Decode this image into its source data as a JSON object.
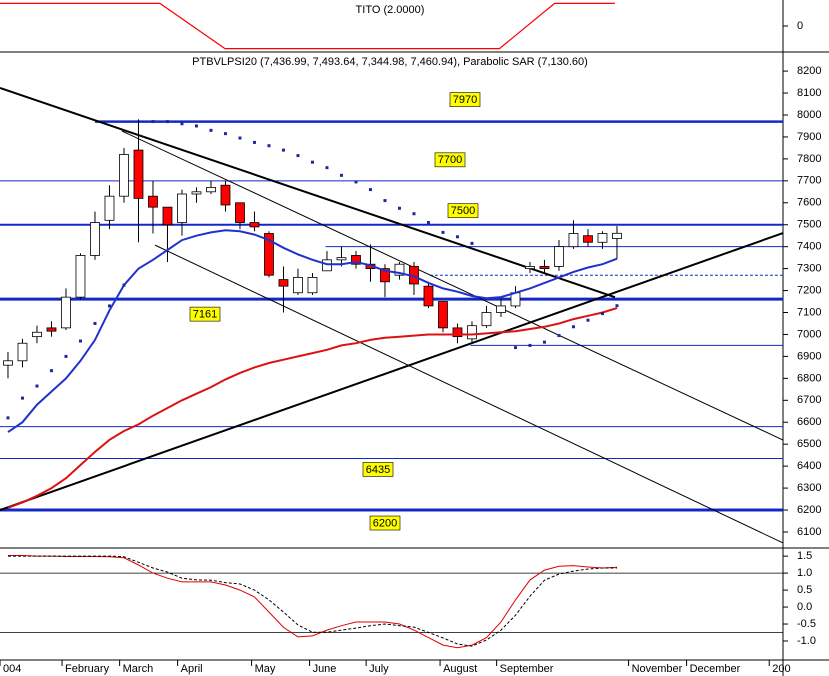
{
  "chart_data": [
    {
      "type": "line",
      "title": "TITO (2.0000)",
      "x": [
        -0.55,
        10.48,
        14.97,
        33.9,
        37.7,
        41.86
      ],
      "values": [
        1,
        1,
        -1,
        -1,
        1,
        1
      ],
      "color": "#ff0000",
      "xlim": [
        -0.55,
        53.45
      ],
      "ylim": [
        -1.15,
        1.15
      ],
      "yticks": [
        0
      ]
    },
    {
      "type": "candlestick",
      "title": "PTBVLPSI20 (7,436.99, 7,493.64, 7,344.98, 7,460.94), Parabolic SAR (7,130.60)",
      "open": [
        6860,
        6880,
        6990,
        7030,
        7030,
        7170,
        7360,
        7520,
        7630,
        7840,
        7630,
        7580,
        7510,
        7640,
        7650,
        7680,
        7600,
        7510,
        7460,
        7250,
        7190,
        7190,
        7290,
        7340,
        7360,
        7320,
        7300,
        7270,
        7310,
        7220,
        7150,
        7030,
        6980,
        7040,
        7100,
        7130,
        7300,
        7310,
        7310,
        7400,
        7450,
        7420,
        7436.99
      ],
      "high": [
        6920,
        6980,
        7040,
        7060,
        7210,
        7370,
        7560,
        7680,
        7850,
        7980,
        7700,
        7580,
        7660,
        7670,
        7700,
        7700,
        7600,
        7560,
        7470,
        7310,
        7300,
        7280,
        7380,
        7400,
        7380,
        7410,
        7320,
        7330,
        7330,
        7240,
        7150,
        7050,
        7060,
        7130,
        7160,
        7220,
        7330,
        7340,
        7430,
        7520,
        7480,
        7470,
        7493.64
      ],
      "low": [
        6800,
        6850,
        6960,
        6990,
        7020,
        7160,
        7340,
        7480,
        7600,
        7420,
        7460,
        7330,
        7450,
        7600,
        7640,
        7560,
        7480,
        7470,
        7260,
        7100,
        7180,
        7180,
        7290,
        7310,
        7300,
        7240,
        7170,
        7250,
        7180,
        7120,
        7010,
        6960,
        6960,
        7030,
        7080,
        7120,
        7280,
        7280,
        7290,
        7390,
        7400,
        7390,
        7344.98
      ],
      "close": [
        6880,
        6960,
        7010,
        7015,
        7170,
        7360,
        7510,
        7630,
        7820,
        7620,
        7580,
        7500,
        7640,
        7650,
        7670,
        7590,
        7510,
        7490,
        7270,
        7220,
        7260,
        7260,
        7340,
        7350,
        7320,
        7300,
        7240,
        7320,
        7230,
        7130,
        7030,
        6990,
        7040,
        7100,
        7130,
        7190,
        7310,
        7300,
        7400,
        7460,
        7420,
        7460,
        7460.94
      ],
      "up_color": "#ffffff",
      "down_color": "#ff0000",
      "overlays": [
        {
          "color": "#1f33cc",
          "values": [
            6555,
            6600,
            6680,
            6740,
            6800,
            6880,
            6975,
            7110,
            7225,
            7300,
            7340,
            7385,
            7430,
            7450,
            7465,
            7475,
            7470,
            7455,
            7430,
            7395,
            7365,
            7340,
            7320,
            7320,
            7330,
            7315,
            7290,
            7280,
            7265,
            7235,
            7210,
            7195,
            7175,
            7165,
            7170,
            7190,
            7210,
            7235,
            7260,
            7285,
            7305,
            7320,
            7345
          ]
        },
        {
          "color": "#dd1111",
          "values": [
            6210,
            6235,
            6265,
            6300,
            6345,
            6405,
            6465,
            6520,
            6560,
            6590,
            6630,
            6665,
            6700,
            6730,
            6760,
            6795,
            6825,
            6850,
            6870,
            6885,
            6900,
            6915,
            6930,
            6950,
            6960,
            6975,
            6985,
            6990,
            6995,
            7000,
            7000,
            7000,
            7000,
            7005,
            7010,
            7015,
            7025,
            7035,
            7050,
            7070,
            7085,
            7100,
            7120
          ]
        }
      ],
      "sar": {
        "color": "#1a2a9a",
        "values": [
          6620,
          6710,
          6765,
          6835,
          6900,
          6970,
          7050,
          7130,
          7225,
          null,
          7970,
          7970,
          7960,
          7950,
          7930,
          7915,
          7895,
          7875,
          7860,
          7840,
          7815,
          7785,
          7760,
          7725,
          7695,
          7660,
          7610,
          7575,
          7550,
          7510,
          7465,
          7445,
          7415,
          null,
          null,
          6940,
          6950,
          6965,
          6995,
          7035,
          7065,
          7095,
          7131
        ]
      },
      "levels": [
        {
          "value": 7970,
          "width": 2.5,
          "boxed": true,
          "from": 6
        },
        {
          "value": 7700,
          "width": 1,
          "boxed": true
        },
        {
          "value": 7500,
          "width": 2,
          "boxed": true
        },
        {
          "value": 7400,
          "width": 1,
          "from": 21.9
        },
        {
          "value": 7270,
          "width": 1,
          "dash": true,
          "from": 29.1
        },
        {
          "value": 7161,
          "width": 3,
          "boxed": true
        },
        {
          "value": 6950,
          "width": 1,
          "from": 31.9
        },
        {
          "value": 6580,
          "width": 1
        },
        {
          "value": 6435,
          "width": 1,
          "boxed": true
        },
        {
          "value": 6200,
          "width": 3,
          "boxed": true
        }
      ],
      "trendlines": [
        {
          "x": [
            -0.55,
            41.86
          ],
          "values": [
            8123,
            7170
          ],
          "width": 2
        },
        {
          "x": [
            -0.55,
            53.45
          ],
          "values": [
            6200,
            7462
          ],
          "width": 2
        },
        {
          "x": [
            7.86,
            53.45
          ],
          "values": [
            7927,
            6519
          ],
          "width": 1
        },
        {
          "x": [
            10.14,
            53.45
          ],
          "values": [
            7407,
            6050
          ],
          "width": 1
        }
      ],
      "xlim": [
        -0.55,
        53.45
      ],
      "ylim": [
        6027,
        8287
      ],
      "yticks": [
        6100,
        6200,
        6300,
        6400,
        6500,
        6600,
        6700,
        6800,
        6900,
        7000,
        7100,
        7200,
        7300,
        7400,
        7500,
        7600,
        7700,
        7800,
        7900,
        8000,
        8100,
        8200
      ]
    },
    {
      "type": "line",
      "series": [
        {
          "color": "#e00000",
          "values": [
            1.52,
            1.52,
            1.5,
            1.5,
            1.49,
            1.49,
            1.49,
            1.48,
            1.45,
            1.24,
            1.0,
            0.85,
            0.74,
            0.74,
            0.74,
            0.65,
            0.5,
            0.3,
            -0.15,
            -0.6,
            -0.88,
            -0.85,
            -0.68,
            -0.55,
            -0.44,
            -0.44,
            -0.44,
            -0.5,
            -0.68,
            -0.9,
            -1.12,
            -1.2,
            -1.12,
            -0.9,
            -0.44,
            0.21,
            0.8,
            1.09,
            1.2,
            1.22,
            1.18,
            1.15,
            1.17
          ]
        },
        {
          "color": "#000000",
          "dash": true,
          "values": [
            1.5,
            1.5,
            1.5,
            1.5,
            1.5,
            1.5,
            1.5,
            1.5,
            1.48,
            1.32,
            1.15,
            1.03,
            0.85,
            0.8,
            0.79,
            0.72,
            0.68,
            0.5,
            0.21,
            -0.15,
            -0.53,
            -0.74,
            -0.74,
            -0.68,
            -0.62,
            -0.55,
            -0.5,
            -0.55,
            -0.59,
            -0.75,
            -0.91,
            -1.09,
            -1.15,
            -0.97,
            -0.68,
            -0.24,
            0.32,
            0.79,
            0.97,
            1.06,
            1.12,
            1.15,
            1.15
          ]
        }
      ],
      "levels": [
        1,
        -0.75
      ],
      "xlim": [
        -0.55,
        53.45
      ],
      "ylim": [
        -1.56,
        1.74
      ],
      "yticks": [
        1.5,
        {
          "value": 1,
          "label": "1.0"
        },
        0.5,
        {
          "value": 0,
          "label": "0.0"
        },
        -0.5,
        {
          "value": -1,
          "label": "-1.0"
        }
      ],
      "xticks": [
        {
          "value": -0.55,
          "label": "004"
        },
        {
          "value": 3.73,
          "label": "February"
        },
        {
          "value": 7.7,
          "label": "March"
        },
        {
          "value": 11.7,
          "label": "April"
        },
        {
          "value": 16.8,
          "label": "May"
        },
        {
          "value": 20.8,
          "label": "June"
        },
        {
          "value": 24.7,
          "label": "July"
        },
        {
          "value": 29.8,
          "label": "August"
        },
        {
          "value": 33.7,
          "label": "September"
        },
        {
          "value": 42.8,
          "label": "November"
        },
        {
          "value": 46.8,
          "label": "December"
        },
        {
          "value": 52.5,
          "label": "200"
        }
      ]
    }
  ]
}
